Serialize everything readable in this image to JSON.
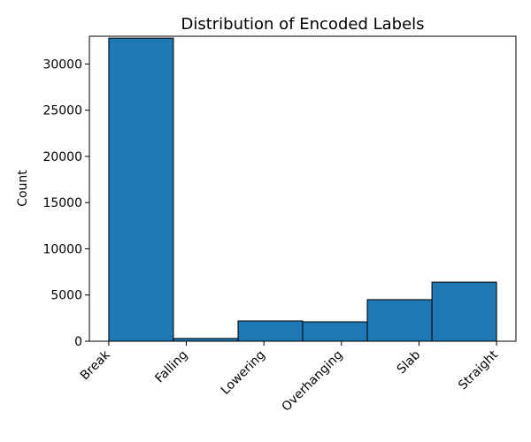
{
  "chart_data": {
    "type": "bar",
    "title": "Distribution of Encoded Labels",
    "xlabel": "",
    "ylabel": "Count",
    "ylim": [
      0,
      33000
    ],
    "yticks": [
      0,
      5000,
      10000,
      15000,
      20000,
      25000,
      30000
    ],
    "xticks": [
      "Break",
      "Falling",
      "Lowering",
      "Overhanging",
      "Slab",
      "Straight"
    ],
    "bins": [
      {
        "start": 0.0,
        "end": 0.8333,
        "value": 32800
      },
      {
        "start": 0.8333,
        "end": 1.6667,
        "value": 300
      },
      {
        "start": 1.6667,
        "end": 2.5,
        "value": 2200
      },
      {
        "start": 2.5,
        "end": 3.3333,
        "value": 2100
      },
      {
        "start": 3.3333,
        "end": 4.1667,
        "value": 4500
      },
      {
        "start": 4.1667,
        "end": 5.0,
        "value": 6400
      }
    ],
    "xlim": [
      -0.25,
      5.25
    ],
    "bar_color": "#1f77b4",
    "edge_color": "#000000",
    "grid": false,
    "legend": "none"
  }
}
